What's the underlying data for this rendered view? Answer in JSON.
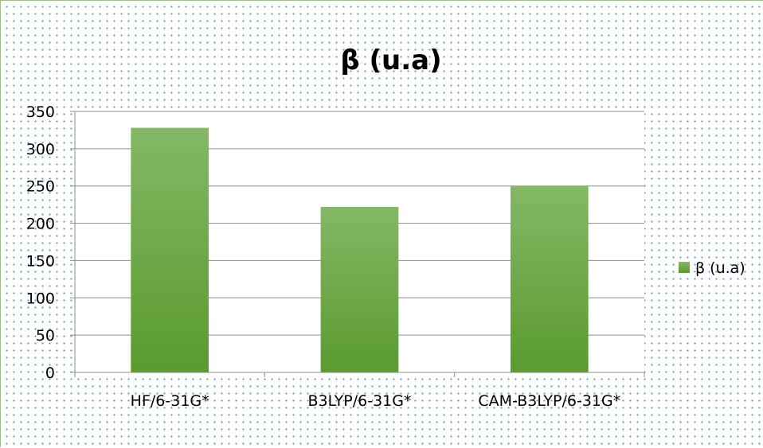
{
  "chart_data": {
    "type": "bar",
    "title": "β (u.a)",
    "categories": [
      "HF/6-31G*",
      "B3LYP/6-31G*",
      "CAM-B3LYP/6-31G*"
    ],
    "series": [
      {
        "name": "β (u.a)",
        "values": [
          328,
          222,
          250
        ]
      }
    ],
    "xlabel": "",
    "ylabel": "",
    "ylim": [
      0,
      350
    ],
    "yticks": [
      "0",
      "50",
      "100",
      "150",
      "200",
      "250",
      "300",
      "350"
    ],
    "grid": true,
    "legend": "right",
    "colors": {
      "bar_top": "#84b866",
      "bar_bottom": "#5a9a2e",
      "grid": "#8c8c8c"
    }
  }
}
